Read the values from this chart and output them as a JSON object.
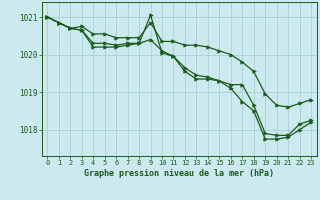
{
  "title": "Graphe pression niveau de la mer (hPa)",
  "background_color": "#cce9f0",
  "grid_color": "#a8cfd8",
  "line_color": "#1a5c1a",
  "xlim": [
    -0.5,
    23.5
  ],
  "ylim": [
    1017.3,
    1021.4
  ],
  "yticks": [
    1018,
    1019,
    1020,
    1021
  ],
  "xticks": [
    0,
    1,
    2,
    3,
    4,
    5,
    6,
    7,
    8,
    9,
    10,
    11,
    12,
    13,
    14,
    15,
    16,
    17,
    18,
    19,
    20,
    21,
    22,
    23
  ],
  "series": [
    [
      1021.0,
      1020.85,
      1020.7,
      1020.75,
      1020.55,
      1020.55,
      1020.45,
      1020.45,
      1020.45,
      1020.85,
      1020.35,
      1020.35,
      1020.25,
      1020.25,
      1020.2,
      1020.1,
      1020.0,
      1019.8,
      1019.55,
      1018.95,
      1018.65,
      1018.6,
      1018.7,
      1018.8
    ],
    [
      1021.0,
      1020.85,
      1020.7,
      1020.65,
      1020.2,
      1020.2,
      1020.2,
      1020.25,
      1020.3,
      1021.05,
      1020.05,
      1019.95,
      1019.55,
      1019.35,
      1019.35,
      1019.3,
      1019.2,
      1019.2,
      1018.65,
      1017.9,
      1017.85,
      1017.85,
      1018.15,
      1018.25
    ],
    [
      1021.0,
      1020.85,
      1020.7,
      1020.65,
      1020.3,
      1020.3,
      1020.25,
      1020.3,
      1020.3,
      1020.4,
      1020.1,
      1019.95,
      1019.65,
      1019.45,
      1019.4,
      1019.3,
      1019.1,
      1018.75,
      1018.5,
      1017.75,
      1017.75,
      1017.8,
      1018.0,
      1018.2
    ]
  ]
}
